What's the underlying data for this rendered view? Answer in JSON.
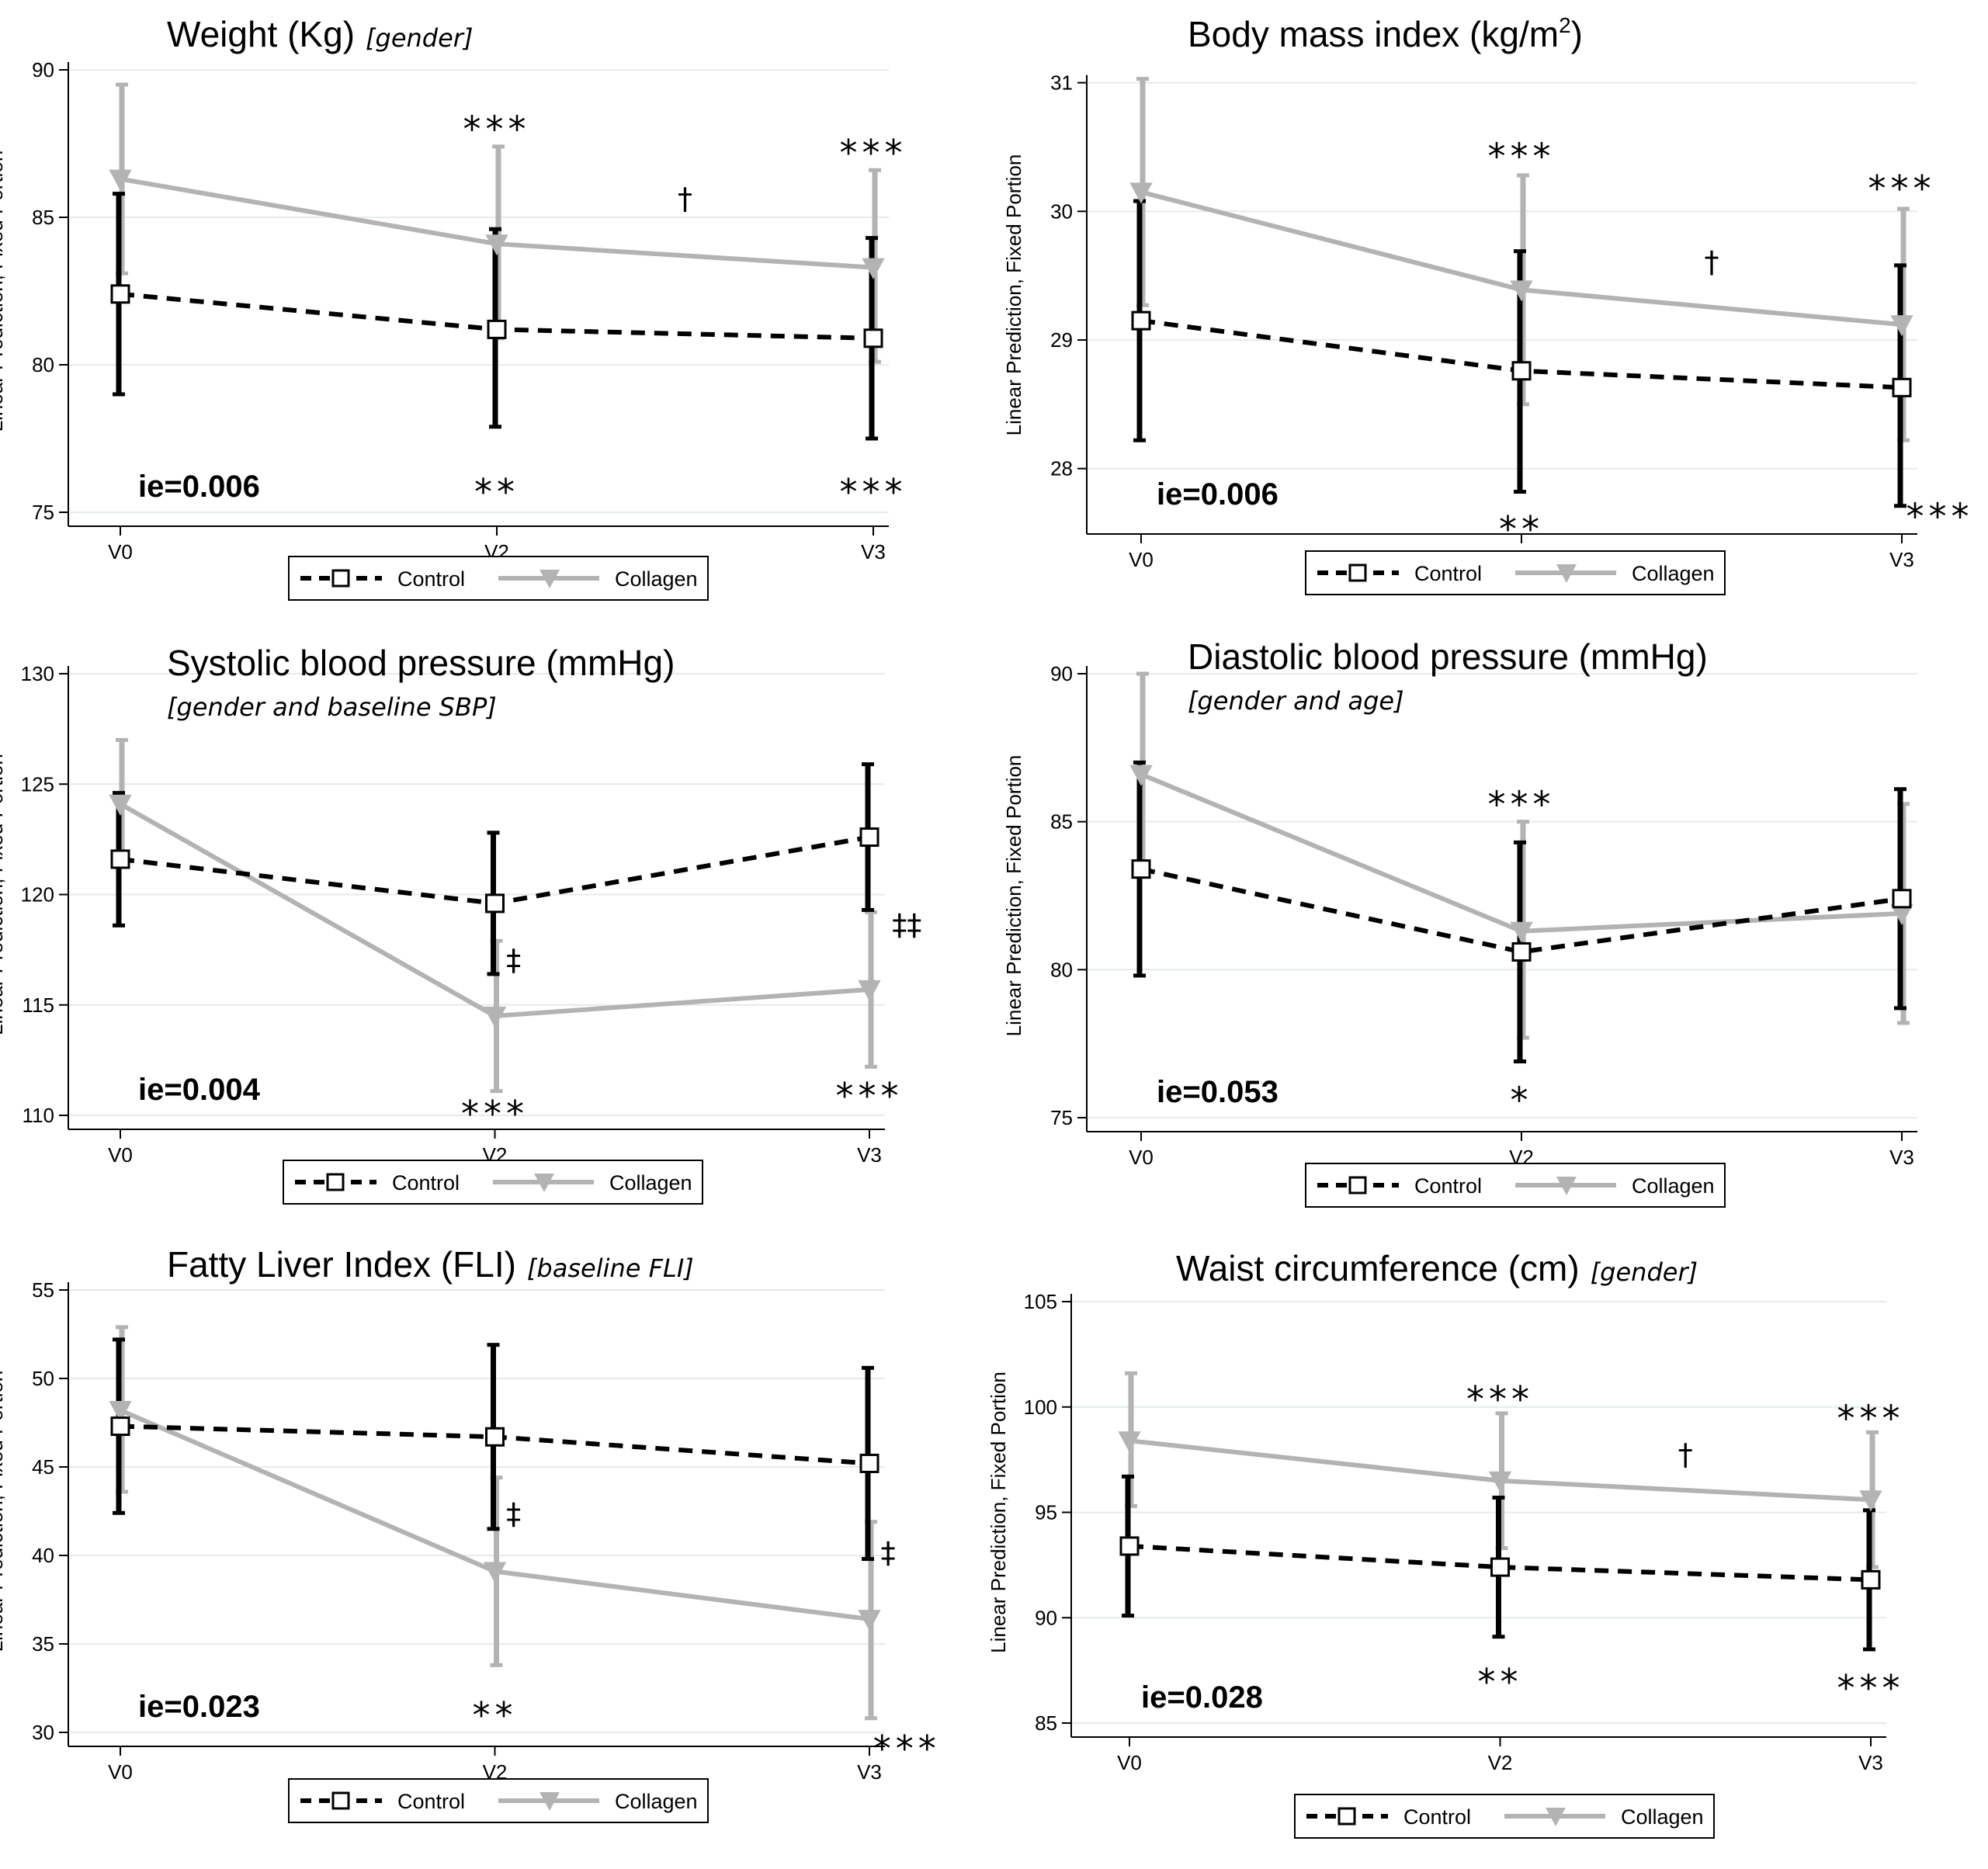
{
  "chart_data": [
    {
      "type": "line",
      "title": "Weight (Kg)",
      "title_sup": "",
      "title_suffix": "",
      "qualifier": "[gender]",
      "qualifier_inline": true,
      "ylabel": "Linear Prediction, Fixed Portion",
      "categories": [
        "V0",
        "V2",
        "V3"
      ],
      "ylim": [
        75,
        90
      ],
      "yticks": [
        75,
        80,
        85,
        90
      ],
      "ie": "ie=0.006",
      "series": [
        {
          "name": "Control",
          "color": "#000000",
          "values": [
            82.4,
            81.2,
            80.9
          ],
          "ci": [
            [
              79.0,
              85.8
            ],
            [
              77.9,
              84.6
            ],
            [
              77.5,
              84.3
            ]
          ]
        },
        {
          "name": "Collagen",
          "color": "#b3b3b3",
          "values": [
            86.3,
            84.1,
            83.3
          ],
          "ci": [
            [
              83.1,
              89.5
            ],
            [
              80.9,
              87.4
            ],
            [
              80.1,
              86.6
            ]
          ]
        }
      ],
      "annotations": [
        {
          "text": "***",
          "x": 1,
          "y": 88.3
        },
        {
          "text": "***",
          "x": 2,
          "y": 87.5
        },
        {
          "text": "†",
          "x": 1.5,
          "y": 85.6
        },
        {
          "text": "**",
          "x": 1,
          "y": 76.0
        },
        {
          "text": "***",
          "x": 2,
          "y": 76.0
        }
      ]
    },
    {
      "type": "line",
      "title": "Body mass index (kg/m",
      "title_sup": "2",
      "title_suffix": ")",
      "qualifier": "",
      "qualifier_inline": true,
      "ylabel": "Linear Prediction, Fixed Portion",
      "categories": [
        "V0",
        "V2",
        "V3"
      ],
      "ylim": [
        27.6,
        31.1
      ],
      "yticks": [
        28,
        29,
        30,
        31
      ],
      "ie": "ie=0.006",
      "series": [
        {
          "name": "Control",
          "color": "#000000",
          "values": [
            29.15,
            28.76,
            28.63
          ],
          "ci": [
            [
              28.22,
              30.08
            ],
            [
              27.82,
              29.69
            ],
            [
              27.71,
              29.58
            ]
          ]
        },
        {
          "name": "Collagen",
          "color": "#b3b3b3",
          "values": [
            30.15,
            29.39,
            29.12
          ],
          "ci": [
            [
              29.27,
              31.03
            ],
            [
              28.5,
              30.28
            ],
            [
              28.22,
              30.02
            ]
          ]
        }
      ],
      "annotations": [
        {
          "text": "***",
          "x": 1,
          "y": 30.5
        },
        {
          "text": "***",
          "x": 2,
          "y": 30.25
        },
        {
          "text": "†",
          "x": 1.5,
          "y": 29.6
        },
        {
          "text": "**",
          "x": 1,
          "y": 27.6
        },
        {
          "text": "***",
          "x": 2.1,
          "y": 27.7
        }
      ]
    },
    {
      "type": "line",
      "title": "Systolic blood pressure (mmHg)",
      "title_sup": "",
      "title_suffix": "",
      "qualifier": "[gender and baseline SBP]",
      "qualifier_inline": false,
      "ylabel": "Linear Prediction, Fixed Portion",
      "categories": [
        "V0",
        "V2",
        "V3"
      ],
      "ylim": [
        110,
        130
      ],
      "yticks": [
        110,
        115,
        120,
        125,
        130
      ],
      "ie": "ie=0.004",
      "series": [
        {
          "name": "Control",
          "color": "#000000",
          "values": [
            121.6,
            119.6,
            122.6
          ],
          "ci": [
            [
              118.6,
              124.6
            ],
            [
              116.4,
              122.8
            ],
            [
              119.3,
              125.9
            ]
          ]
        },
        {
          "name": "Collagen",
          "color": "#b3b3b3",
          "values": [
            124.1,
            114.5,
            115.7
          ],
          "ci": [
            [
              121.3,
              127.0
            ],
            [
              111.1,
              117.9
            ],
            [
              112.2,
              119.2
            ]
          ]
        }
      ],
      "annotations": [
        {
          "text": "‡",
          "x": 1.05,
          "y": 117.0
        },
        {
          "text": "‡‡",
          "x": 2.1,
          "y": 118.6
        },
        {
          "text": "***",
          "x": 1,
          "y": 110.5
        },
        {
          "text": "***",
          "x": 2,
          "y": 111.3
        }
      ]
    },
    {
      "type": "line",
      "title": "Diastolic blood pressure (mmHg)",
      "title_sup": "",
      "title_suffix": "",
      "qualifier": "[gender and age]",
      "qualifier_inline": false,
      "ylabel": "Linear Prediction, Fixed Portion",
      "categories": [
        "V0",
        "V2",
        "V3"
      ],
      "ylim": [
        75,
        90
      ],
      "yticks": [
        75,
        80,
        85,
        90
      ],
      "ie": "ie=0.053",
      "series": [
        {
          "name": "Control",
          "color": "#000000",
          "values": [
            83.4,
            80.6,
            82.4
          ],
          "ci": [
            [
              79.8,
              87.0
            ],
            [
              76.9,
              84.3
            ],
            [
              78.7,
              86.1
            ]
          ]
        },
        {
          "name": "Collagen",
          "color": "#b3b3b3",
          "values": [
            86.6,
            81.3,
            81.9
          ],
          "ci": [
            [
              83.2,
              90.0
            ],
            [
              77.7,
              85.0
            ],
            [
              78.2,
              85.6
            ]
          ]
        }
      ],
      "annotations": [
        {
          "text": "***",
          "x": 1,
          "y": 85.9
        },
        {
          "text": "*",
          "x": 1,
          "y": 75.9
        }
      ]
    },
    {
      "type": "line",
      "title": "Fatty Liver Index (FLI)",
      "title_sup": "",
      "title_suffix": "",
      "qualifier": "[baseline FLI]",
      "qualifier_inline": true,
      "ylabel": "Linear Prediction, Fixed Portion",
      "categories": [
        "V0",
        "V2",
        "V3"
      ],
      "ylim": [
        30,
        55
      ],
      "yticks": [
        30,
        35,
        40,
        45,
        50,
        55
      ],
      "ie": "ie=0.023",
      "series": [
        {
          "name": "Control",
          "color": "#000000",
          "values": [
            47.3,
            46.7,
            45.2
          ],
          "ci": [
            [
              42.4,
              52.2
            ],
            [
              41.5,
              51.9
            ],
            [
              39.8,
              50.6
            ]
          ]
        },
        {
          "name": "Collagen",
          "color": "#b3b3b3",
          "values": [
            48.2,
            39.1,
            36.4
          ],
          "ci": [
            [
              43.6,
              52.9
            ],
            [
              33.8,
              44.4
            ],
            [
              30.8,
              41.9
            ]
          ]
        }
      ],
      "annotations": [
        {
          "text": "‡",
          "x": 1.05,
          "y": 42.3
        },
        {
          "text": "‡",
          "x": 2.05,
          "y": 40.1
        },
        {
          "text": "**",
          "x": 1,
          "y": 31.5
        },
        {
          "text": "***",
          "x": 2.1,
          "y": 29.6
        }
      ]
    },
    {
      "type": "line",
      "title": "Waist circumference (cm)",
      "title_sup": "",
      "title_suffix": "",
      "qualifier": "[gender]",
      "qualifier_inline": true,
      "ylabel": "Linear Prediction, Fixed Portion",
      "categories": [
        "V0",
        "V2",
        "V3"
      ],
      "ylim": [
        85,
        105
      ],
      "yticks": [
        85,
        90,
        95,
        100,
        105
      ],
      "ie": "ie=0.028",
      "series": [
        {
          "name": "Control",
          "color": "#000000",
          "values": [
            93.4,
            92.4,
            91.8
          ],
          "ci": [
            [
              90.1,
              96.7
            ],
            [
              89.1,
              95.7
            ],
            [
              88.5,
              95.1
            ]
          ]
        },
        {
          "name": "Collagen",
          "color": "#b3b3b3",
          "values": [
            98.4,
            96.5,
            95.6
          ],
          "ci": [
            [
              95.3,
              101.6
            ],
            [
              93.3,
              99.7
            ],
            [
              92.4,
              98.8
            ]
          ]
        }
      ],
      "annotations": [
        {
          "text": "***",
          "x": 1,
          "y": 100.8
        },
        {
          "text": "***",
          "x": 2,
          "y": 99.9
        },
        {
          "text": "†",
          "x": 1.5,
          "y": 97.7
        },
        {
          "text": "**",
          "x": 1,
          "y": 87.4
        },
        {
          "text": "***",
          "x": 2,
          "y": 87.1
        }
      ]
    }
  ]
}
